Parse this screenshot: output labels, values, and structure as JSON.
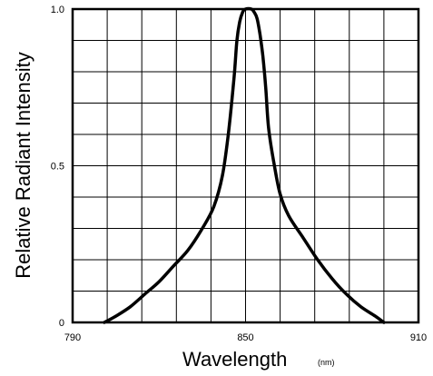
{
  "chart_data": {
    "type": "line",
    "title": "",
    "xlabel": "Wavelength",
    "xunit": "(nm)",
    "ylabel": "Relative Radiant Intensity",
    "xlim": [
      790,
      910
    ],
    "ylim": [
      0,
      1.0
    ],
    "x_ticks": [
      790,
      850,
      910
    ],
    "x_tick_labels": [
      "790",
      "850",
      "910"
    ],
    "y_ticks": [
      0,
      0.5,
      1.0
    ],
    "y_tick_labels": [
      "0",
      "0.5",
      "1.0"
    ],
    "x_grid_step": 12,
    "y_grid_step": 0.1,
    "grid": true,
    "line_color": "#000000",
    "series": [
      {
        "values": [
          [
            801,
            0
          ],
          [
            805,
            0.02
          ],
          [
            810,
            0.05
          ],
          [
            815,
            0.09
          ],
          [
            820,
            0.13
          ],
          [
            825,
            0.18
          ],
          [
            830,
            0.23
          ],
          [
            835,
            0.3
          ],
          [
            839,
            0.37
          ],
          [
            842,
            0.47
          ],
          [
            844,
            0.6
          ],
          [
            846,
            0.78
          ],
          [
            847,
            0.9
          ],
          [
            848,
            0.96
          ],
          [
            849,
            0.99
          ],
          [
            850,
            1.0
          ],
          [
            852,
            1.0
          ],
          [
            853,
            0.99
          ],
          [
            854,
            0.97
          ],
          [
            855,
            0.92
          ],
          [
            856,
            0.85
          ],
          [
            857,
            0.75
          ],
          [
            858,
            0.62
          ],
          [
            860,
            0.5
          ],
          [
            862,
            0.41
          ],
          [
            865,
            0.34
          ],
          [
            870,
            0.27
          ],
          [
            875,
            0.2
          ],
          [
            880,
            0.14
          ],
          [
            885,
            0.09
          ],
          [
            890,
            0.05
          ],
          [
            895,
            0.02
          ],
          [
            898,
            0
          ]
        ]
      }
    ]
  }
}
